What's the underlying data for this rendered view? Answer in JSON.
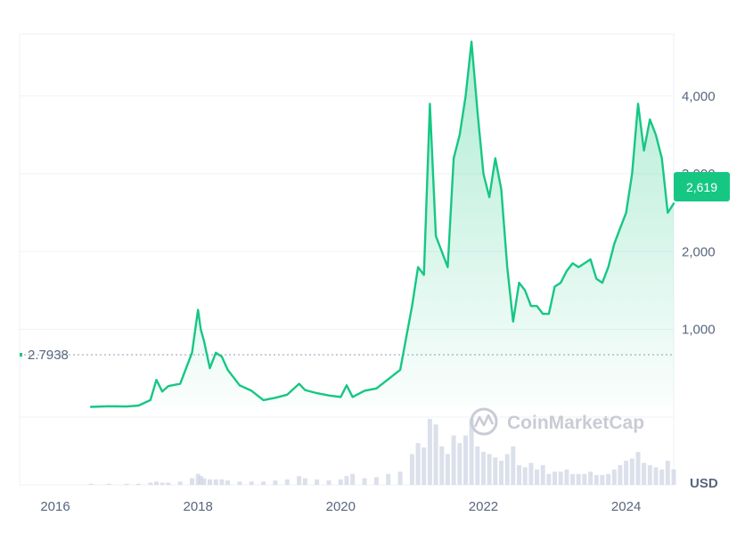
{
  "chart_data": {
    "type": "area",
    "series": [
      {
        "x": [
          "2016-07",
          "2016-10",
          "2017-01",
          "2017-03",
          "2017-05",
          "2017-06",
          "2017-07",
          "2017-08",
          "2017-10",
          "2017-12",
          "2018-01",
          "2018-01-15",
          "2018-02",
          "2018-03",
          "2018-04",
          "2018-05",
          "2018-06",
          "2018-08",
          "2018-10",
          "2018-12",
          "2019-02",
          "2019-04",
          "2019-06",
          "2019-07",
          "2019-09",
          "2019-11",
          "2020-01",
          "2020-02",
          "2020-03",
          "2020-05",
          "2020-07",
          "2020-09",
          "2020-11",
          "2021-01",
          "2021-02",
          "2021-03",
          "2021-04",
          "2021-05",
          "2021-06",
          "2021-07",
          "2021-08",
          "2021-09",
          "2021-10",
          "2021-11",
          "2021-12",
          "2022-01",
          "2022-02",
          "2022-03",
          "2022-04",
          "2022-05",
          "2022-06",
          "2022-07",
          "2022-08",
          "2022-09",
          "2022-10",
          "2022-11",
          "2022-12",
          "2023-01",
          "2023-02",
          "2023-03",
          "2023-04",
          "2023-05",
          "2023-06",
          "2023-07",
          "2023-08",
          "2023-09",
          "2023-10",
          "2023-11",
          "2023-12",
          "2024-01",
          "2024-02",
          "2024-03",
          "2024-04",
          "2024-05",
          "2024-06",
          "2024-07",
          "2024-08",
          "2024-09"
        ],
        "values": [
          2.79,
          11,
          8,
          20,
          90,
          350,
          200,
          270,
          300,
          700,
          1250,
          1000,
          850,
          500,
          700,
          650,
          480,
          280,
          210,
          90,
          120,
          160,
          300,
          220,
          180,
          150,
          130,
          280,
          130,
          210,
          240,
          360,
          480,
          1300,
          1800,
          1700,
          3900,
          2200,
          2000,
          1800,
          3200,
          3500,
          4000,
          4700,
          3800,
          3000,
          2700,
          3200,
          2800,
          1800,
          1100,
          1600,
          1500,
          1300,
          1300,
          1200,
          1200,
          1550,
          1600,
          1750,
          1850,
          1800,
          1850,
          1900,
          1650,
          1600,
          1800,
          2100,
          2300,
          2500,
          3000,
          3900,
          3300,
          3700,
          3500,
          3200,
          2500,
          2619
        ]
      }
    ],
    "volume_values": [
      1,
      1,
      1,
      1,
      2,
      3,
      2,
      2,
      3,
      6,
      10,
      8,
      6,
      5,
      5,
      5,
      4,
      3,
      3,
      3,
      4,
      5,
      8,
      6,
      5,
      4,
      5,
      8,
      10,
      6,
      7,
      10,
      12,
      28,
      38,
      34,
      60,
      55,
      35,
      28,
      45,
      38,
      45,
      60,
      35,
      30,
      28,
      25,
      22,
      28,
      35,
      18,
      16,
      20,
      14,
      18,
      10,
      12,
      12,
      14,
      10,
      10,
      10,
      12,
      9,
      9,
      10,
      14,
      18,
      22,
      24,
      30,
      20,
      18,
      16,
      14,
      22,
      14
    ],
    "yticks": [
      "1,000",
      "2,000",
      "3,000",
      "4,000"
    ],
    "ytick_values": [
      1000,
      2000,
      3000,
      4000
    ],
    "xticks": [
      "2016",
      "2018",
      "2020",
      "2022",
      "2024"
    ],
    "ylim": [
      -1000,
      4800
    ],
    "xlim": [
      "2015-07",
      "2024-09"
    ],
    "start_value_label": "2.7938",
    "current_value_label": "2,619",
    "current_value": 2619,
    "unit_label": "USD",
    "grid": true,
    "colors": {
      "line": "#16c784",
      "fill": "#16c784",
      "grid": "#eff2f5",
      "text": "#58667e",
      "badge": "#16c784",
      "volume": "#cfd6e4"
    }
  },
  "watermark": {
    "text": "CoinMarketCap",
    "icon": "coinmarketcap-logo-icon"
  }
}
